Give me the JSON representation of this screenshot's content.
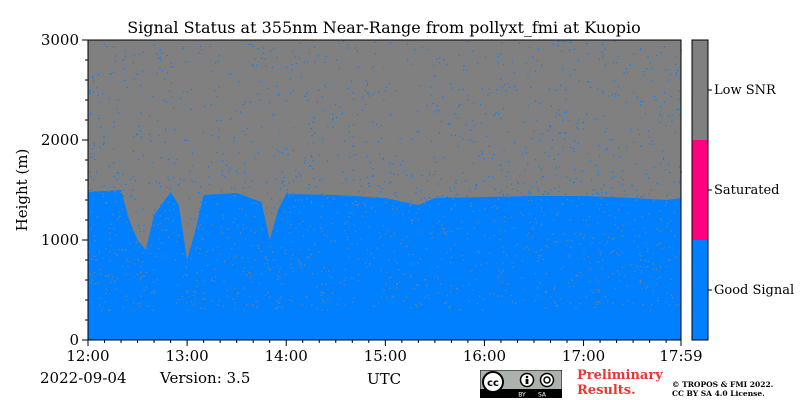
{
  "chart_data": {
    "type": "heatmap",
    "title": "Signal Status at 355nm Near-Range from pollyxt_fmi at Kuopio",
    "xlabel": "UTC",
    "ylabel": "Height (m)",
    "xlim": [
      "12:00",
      "17:59"
    ],
    "ylim": [
      0,
      3000
    ],
    "x_ticks": [
      "12:00",
      "13:00",
      "14:00",
      "15:00",
      "16:00",
      "17:00",
      "17:59"
    ],
    "y_ticks": [
      0,
      1000,
      2000,
      3000
    ],
    "categories": [
      {
        "name": "Low SNR",
        "color": "#808080"
      },
      {
        "name": "Saturated",
        "color": "#ff0080"
      },
      {
        "name": "Good Signal",
        "color": "#0080ff"
      }
    ],
    "colorbar": {
      "labels": [
        "Low SNR",
        "Saturated",
        "Good Signal"
      ],
      "placement": "right"
    },
    "good_signal_top_m": [
      [
        "12:00",
        1480
      ],
      [
        "12:20",
        1500
      ],
      [
        "12:25",
        1200
      ],
      [
        "12:30",
        1000
      ],
      [
        "12:35",
        900
      ],
      [
        "12:40",
        1250
      ],
      [
        "12:50",
        1480
      ],
      [
        "12:55",
        1350
      ],
      [
        "13:00",
        800
      ],
      [
        "13:05",
        1100
      ],
      [
        "13:10",
        1450
      ],
      [
        "13:30",
        1470
      ],
      [
        "13:45",
        1380
      ],
      [
        "13:50",
        1000
      ],
      [
        "13:55",
        1300
      ],
      [
        "14:00",
        1460
      ],
      [
        "14:30",
        1450
      ],
      [
        "15:00",
        1420
      ],
      [
        "15:20",
        1350
      ],
      [
        "15:30",
        1420
      ],
      [
        "16:00",
        1430
      ],
      [
        "16:30",
        1440
      ],
      [
        "17:00",
        1440
      ],
      [
        "17:30",
        1420
      ],
      [
        "17:50",
        1400
      ],
      [
        "17:59",
        1420
      ]
    ]
  },
  "footer": {
    "date": "2022-09-04",
    "version": "Version: 3.5",
    "preliminary": [
      "Preliminary",
      "Results."
    ],
    "copyright": [
      "© TROPOS & FMI 2022.",
      "CC BY SA 4.0 License."
    ]
  },
  "license_badge": {
    "cc": "cc",
    "by": "BY",
    "sa": "SA"
  }
}
